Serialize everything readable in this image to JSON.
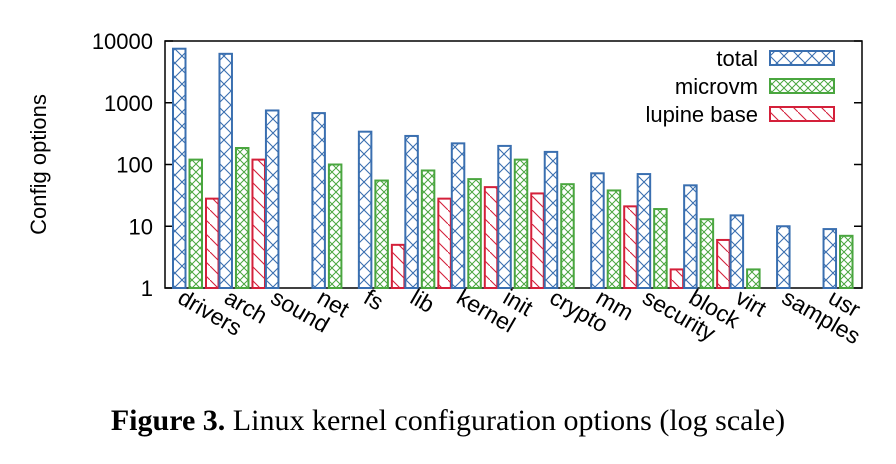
{
  "chart_data": {
    "type": "bar",
    "ylabel": "Config options",
    "yscale": "log",
    "ylim": [
      1,
      10000
    ],
    "yticks": [
      "1",
      "10",
      "100",
      "1000",
      "10000"
    ],
    "legend_position": "top-right",
    "categories": [
      "drivers",
      "arch",
      "sound",
      "net",
      "fs",
      "lib",
      "kernel",
      "init",
      "crypto",
      "mm",
      "security",
      "block",
      "virt",
      "samples",
      "usr"
    ],
    "series": [
      {
        "name": "total",
        "color": "#3a6fb0",
        "pattern": "crosshatch",
        "values": [
          7500,
          6200,
          750,
          680,
          340,
          290,
          220,
          200,
          160,
          72,
          70,
          46,
          15,
          10,
          9
        ]
      },
      {
        "name": "microvm",
        "color": "#4aa63f",
        "pattern": "fine-crosshatch",
        "values": [
          120,
          185,
          null,
          100,
          55,
          80,
          58,
          120,
          48,
          38,
          19,
          13,
          2,
          null,
          7
        ]
      },
      {
        "name": "lupine base",
        "color": "#d4203a",
        "pattern": "diagonal",
        "values": [
          28,
          120,
          null,
          null,
          5,
          28,
          43,
          34,
          null,
          21,
          2,
          6,
          null,
          null,
          null
        ]
      }
    ]
  },
  "caption": {
    "label": "Figure 3.",
    "text": " Linux kernel configuration options (log scale)"
  }
}
